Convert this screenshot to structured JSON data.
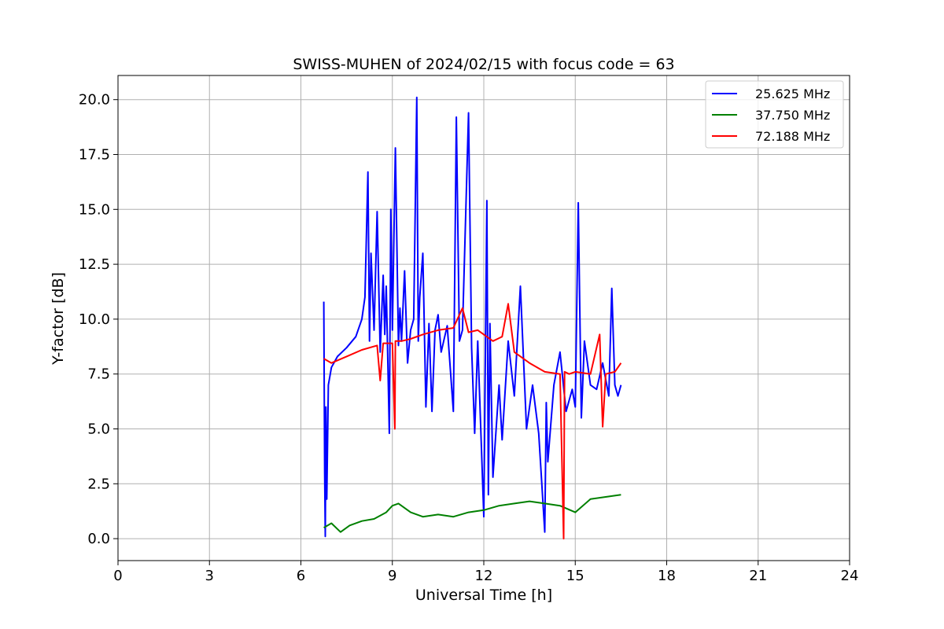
{
  "chart_data": {
    "type": "line",
    "title": "SWISS-MUHEN of 2024/02/15 with focus code = 63",
    "xlabel": "Universal Time [h]",
    "ylabel": "Y-factor [dB]",
    "xlim": [
      0,
      24
    ],
    "ylim": [
      -1.0,
      21.1
    ],
    "xticks": [
      0,
      3,
      6,
      9,
      12,
      15,
      18,
      21,
      24
    ],
    "xtick_labels": [
      "0",
      "3",
      "6",
      "9",
      "12",
      "15",
      "18",
      "21",
      "24"
    ],
    "yticks": [
      0,
      2.5,
      5,
      7.5,
      10,
      12.5,
      15,
      17.5,
      20
    ],
    "ytick_labels": [
      "0.0",
      "2.5",
      "5.0",
      "7.5",
      "10.0",
      "12.5",
      "15.0",
      "17.5",
      "20.0"
    ],
    "grid": true,
    "legend_position": "top-right",
    "series": [
      {
        "name": "25.625 MHz",
        "color": "#0000ff",
        "x": [
          6.75,
          6.78,
          6.8,
          6.82,
          6.85,
          6.9,
          7.0,
          7.2,
          7.5,
          7.8,
          8.0,
          8.1,
          8.2,
          8.25,
          8.3,
          8.4,
          8.5,
          8.6,
          8.7,
          8.75,
          8.8,
          8.9,
          8.95,
          9.0,
          9.1,
          9.2,
          9.25,
          9.3,
          9.4,
          9.5,
          9.6,
          9.7,
          9.8,
          9.85,
          9.9,
          10.0,
          10.1,
          10.2,
          10.3,
          10.4,
          10.5,
          10.6,
          10.8,
          11.0,
          11.1,
          11.2,
          11.3,
          11.5,
          11.6,
          11.7,
          11.8,
          12.0,
          12.1,
          12.15,
          12.2,
          12.3,
          12.5,
          12.6,
          12.8,
          13.0,
          13.2,
          13.4,
          13.6,
          13.8,
          14.0,
          14.05,
          14.1,
          14.3,
          14.5,
          14.7,
          14.9,
          15.0,
          15.1,
          15.2,
          15.3,
          15.5,
          15.7,
          15.9,
          16.1,
          16.2,
          16.3,
          16.4,
          16.5
        ],
        "y": [
          10.8,
          3.0,
          0.1,
          6.0,
          1.8,
          7.0,
          7.8,
          8.3,
          8.7,
          9.2,
          10.0,
          11.0,
          16.7,
          9.0,
          13.0,
          9.5,
          14.9,
          8.5,
          12.0,
          9.3,
          11.5,
          4.8,
          15.0,
          9.5,
          17.8,
          8.8,
          10.5,
          9.0,
          12.2,
          8.0,
          9.5,
          10.0,
          20.1,
          9.0,
          11.0,
          13.0,
          6.0,
          9.8,
          5.8,
          9.5,
          10.2,
          8.5,
          9.7,
          5.8,
          19.2,
          9.0,
          9.5,
          19.4,
          8.7,
          4.8,
          9.0,
          1.0,
          15.4,
          2.0,
          9.8,
          2.8,
          7.0,
          4.5,
          9.0,
          6.5,
          11.5,
          5.0,
          7.0,
          4.8,
          0.3,
          6.2,
          3.5,
          7.0,
          8.5,
          5.8,
          6.8,
          6.0,
          15.3,
          5.5,
          9.0,
          7.0,
          6.8,
          8.0,
          6.5,
          11.4,
          7.0,
          6.5,
          7.0
        ]
      },
      {
        "name": "37.750 MHz",
        "color": "#008000",
        "x": [
          6.75,
          7.0,
          7.3,
          7.6,
          8.0,
          8.4,
          8.8,
          9.0,
          9.2,
          9.6,
          10.0,
          10.5,
          11.0,
          11.5,
          12.0,
          12.5,
          13.0,
          13.5,
          14.0,
          14.5,
          15.0,
          15.5,
          16.0,
          16.5
        ],
        "y": [
          0.5,
          0.7,
          0.3,
          0.6,
          0.8,
          0.9,
          1.2,
          1.5,
          1.6,
          1.2,
          1.0,
          1.1,
          1.0,
          1.2,
          1.3,
          1.5,
          1.6,
          1.7,
          1.6,
          1.5,
          1.2,
          1.8,
          1.9,
          2.0
        ]
      },
      {
        "name": "72.188 MHz",
        "color": "#ff0000",
        "x": [
          6.75,
          7.0,
          7.5,
          8.0,
          8.5,
          8.6,
          8.7,
          9.0,
          9.08,
          9.1,
          9.3,
          9.6,
          10.0,
          10.5,
          11.0,
          11.3,
          11.5,
          11.8,
          12.0,
          12.3,
          12.6,
          12.8,
          13.0,
          13.5,
          14.0,
          14.5,
          14.62,
          14.65,
          14.8,
          15.0,
          15.5,
          15.8,
          15.9,
          16.0,
          16.3,
          16.5
        ],
        "y": [
          8.2,
          8.0,
          8.3,
          8.6,
          8.8,
          7.2,
          8.9,
          8.9,
          5.0,
          9.0,
          9.0,
          9.1,
          9.3,
          9.5,
          9.6,
          10.5,
          9.4,
          9.5,
          9.3,
          9.0,
          9.2,
          10.7,
          8.5,
          8.0,
          7.6,
          7.5,
          0.0,
          7.6,
          7.5,
          7.6,
          7.5,
          9.3,
          5.1,
          7.5,
          7.6,
          8.0
        ]
      }
    ]
  }
}
